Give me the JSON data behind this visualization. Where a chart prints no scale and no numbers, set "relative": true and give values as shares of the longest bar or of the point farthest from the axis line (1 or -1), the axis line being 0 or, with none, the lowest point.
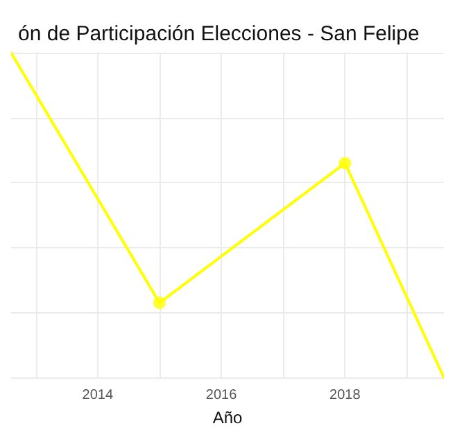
{
  "chart_data": {
    "type": "line",
    "title": "ón de Participación Elecciones - San Felipe",
    "xlabel": "Año",
    "relative": true,
    "xlim": [
      2012.6,
      2019.6
    ],
    "xticks": [
      {
        "value": 2013,
        "label": null
      },
      2014,
      {
        "value": 2015,
        "label": null
      },
      2016,
      {
        "value": 2017,
        "label": null
      },
      2018,
      {
        "value": 2019,
        "label": null
      }
    ],
    "grid": true,
    "series": [
      {
        "color": "#ffff00",
        "marker": "none",
        "x": [
          2012.6,
          2015,
          2018,
          2019.6
        ],
        "values": [
          1,
          0.23,
          0.66,
          0
        ]
      },
      {
        "type": "scatter",
        "color": "#ffff00",
        "marker": "circle",
        "x": [
          2015,
          2018
        ],
        "values": [
          0.23,
          0.66
        ]
      }
    ]
  }
}
